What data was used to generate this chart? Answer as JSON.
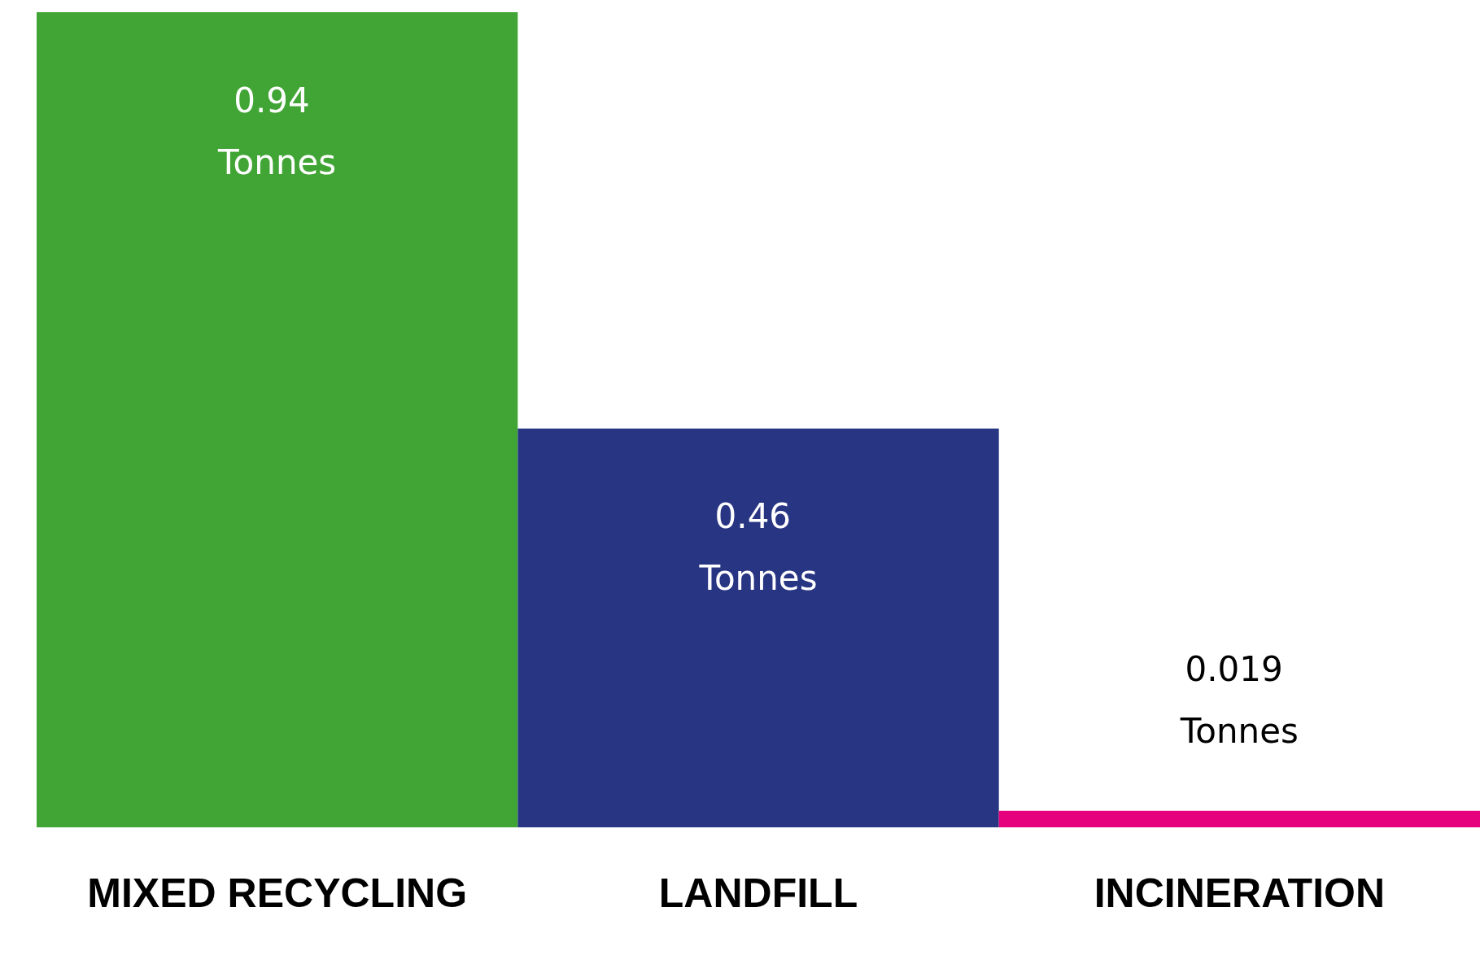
{
  "chart_data": {
    "type": "bar",
    "categories": [
      "MIXED RECYCLING",
      "LANDFILL",
      "INCINERATION"
    ],
    "values": [
      0.94,
      0.46,
      0.019
    ],
    "colors": [
      "#41a535",
      "#283583",
      "#e6007e"
    ],
    "value_labels": [
      "0.94 Tonnes",
      "0.46 Tonnes",
      "0.019 Tonnes"
    ]
  }
}
